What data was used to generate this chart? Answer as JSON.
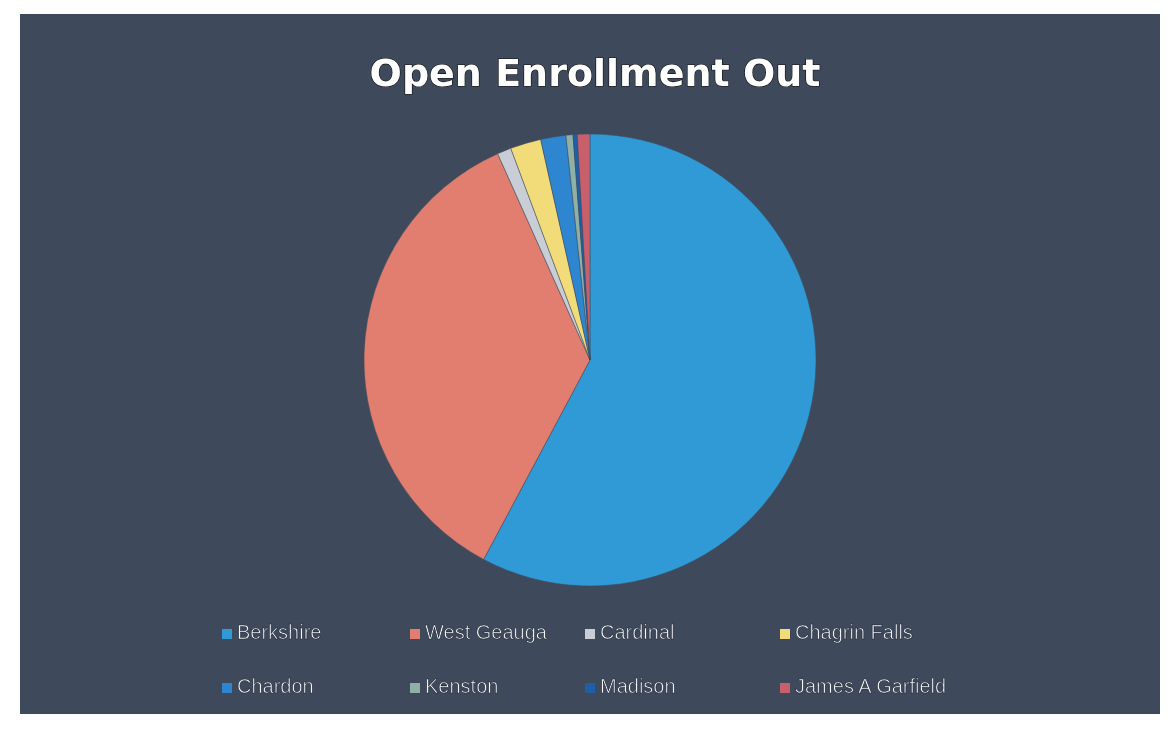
{
  "chart_data": {
    "type": "pie",
    "title": "Open Enrollment Out",
    "categories": [
      "Berkshire",
      "West Geauga",
      "Cardinal",
      "Chagrin Falls",
      "Chardon",
      "Kenston",
      "Madison",
      "James A Garfield"
    ],
    "values": [
      57.8,
      35.5,
      1,
      2.2,
      1.8,
      0.5,
      0.3,
      0.9
    ],
    "colors": [
      "#2f9ad6",
      "#e27e6f",
      "#c9cdd6",
      "#f2dc7a",
      "#2e86d0",
      "#8fb0a6",
      "#1f5fa8",
      "#c8606c"
    ],
    "legend": "bottom"
  }
}
